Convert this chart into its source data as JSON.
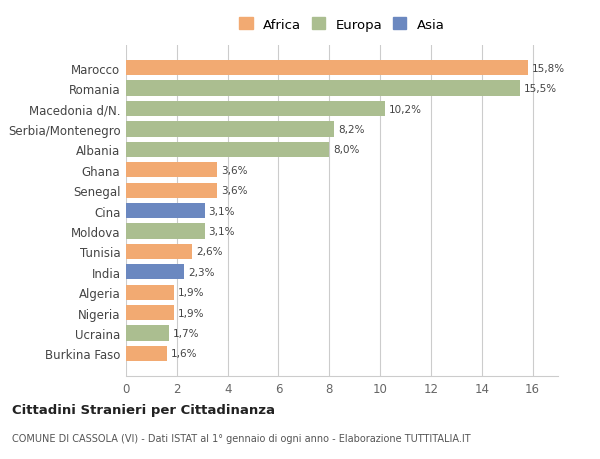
{
  "categories": [
    "Burkina Faso",
    "Ucraina",
    "Nigeria",
    "Algeria",
    "India",
    "Tunisia",
    "Moldova",
    "Cina",
    "Senegal",
    "Ghana",
    "Albania",
    "Serbia/Montenegro",
    "Macedonia d/N.",
    "Romania",
    "Marocco"
  ],
  "values": [
    1.6,
    1.7,
    1.9,
    1.9,
    2.3,
    2.6,
    3.1,
    3.1,
    3.6,
    3.6,
    8.0,
    8.2,
    10.2,
    15.5,
    15.8
  ],
  "continents": [
    "Africa",
    "Europa",
    "Africa",
    "Africa",
    "Asia",
    "Africa",
    "Europa",
    "Asia",
    "Africa",
    "Africa",
    "Europa",
    "Europa",
    "Europa",
    "Europa",
    "Africa"
  ],
  "labels": [
    "1,6%",
    "1,7%",
    "1,9%",
    "1,9%",
    "2,3%",
    "2,6%",
    "3,1%",
    "3,1%",
    "3,6%",
    "3,6%",
    "8,0%",
    "8,2%",
    "10,2%",
    "15,5%",
    "15,8%"
  ],
  "colors": {
    "Africa": "#F2AA72",
    "Europa": "#ABBE90",
    "Asia": "#6B88C0"
  },
  "xlim": [
    0,
    17
  ],
  "xticks": [
    0,
    2,
    4,
    6,
    8,
    10,
    12,
    14,
    16
  ],
  "title": "Cittadini Stranieri per Cittadinanza",
  "subtitle": "COMUNE DI CASSOLA (VI) - Dati ISTAT al 1° gennaio di ogni anno - Elaborazione TUTTITALIA.IT",
  "bg_color": "#ffffff",
  "grid_color": "#dddddd",
  "bar_height": 0.75
}
